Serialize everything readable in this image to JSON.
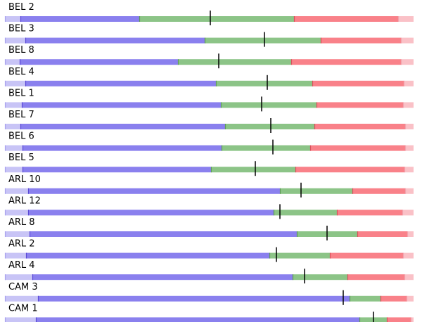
{
  "chart_data": {
    "type": "bar",
    "orientation": "horizontal-segmented",
    "grid": false,
    "legend": "none",
    "xlim": [
      0,
      590
    ],
    "colors": {
      "pre": "#c8c4f6",
      "pre_edge": "#a9a3ee",
      "low": "#8a80ee",
      "low_edge": "#5a48d6",
      "mid": "#8cc487",
      "mid_edge": "#5e9d58",
      "high": "#f98189",
      "high_edge": "#d9505c",
      "post": "#fac1c7",
      "post_edge": "#f1a3ad",
      "marker": "#000000"
    },
    "rows": [
      {
        "label": "BEL 2",
        "pre": [
          7,
          29
        ],
        "low": [
          29,
          198
        ],
        "mid": [
          198,
          418
        ],
        "high": [
          418,
          566
        ],
        "post": [
          566,
          588
        ],
        "marker": 299
      },
      {
        "label": "BEL 3",
        "pre": [
          7,
          36
        ],
        "low": [
          36,
          291
        ],
        "mid": [
          291,
          456
        ],
        "high": [
          456,
          570
        ],
        "post": [
          570,
          588
        ],
        "marker": 376
      },
      {
        "label": "BEL 8",
        "pre": [
          7,
          28
        ],
        "low": [
          28,
          253
        ],
        "mid": [
          253,
          414
        ],
        "high": [
          414,
          570
        ],
        "post": [
          570,
          588
        ],
        "marker": 311
      },
      {
        "label": "BEL 4",
        "pre": [
          7,
          36
        ],
        "low": [
          36,
          307
        ],
        "mid": [
          307,
          444
        ],
        "high": [
          444,
          574
        ],
        "post": [
          574,
          588
        ],
        "marker": 380
      },
      {
        "label": "BEL 1",
        "pre": [
          7,
          31
        ],
        "low": [
          31,
          314
        ],
        "mid": [
          314,
          450
        ],
        "high": [
          450,
          573
        ],
        "post": [
          573,
          588
        ],
        "marker": 372
      },
      {
        "label": "BEL 7",
        "pre": [
          7,
          29
        ],
        "low": [
          29,
          320
        ],
        "mid": [
          320,
          447
        ],
        "high": [
          447,
          576
        ],
        "post": [
          576,
          588
        ],
        "marker": 385
      },
      {
        "label": "BEL 6",
        "pre": [
          7,
          32
        ],
        "low": [
          32,
          315
        ],
        "mid": [
          315,
          441
        ],
        "high": [
          441,
          576
        ],
        "post": [
          576,
          588
        ],
        "marker": 388
      },
      {
        "label": "BEL 5",
        "pre": [
          7,
          32
        ],
        "low": [
          32,
          300
        ],
        "mid": [
          300,
          420
        ],
        "high": [
          420,
          575
        ],
        "post": [
          575,
          588
        ],
        "marker": 363
      },
      {
        "label": "ARL 10",
        "pre": [
          7,
          40
        ],
        "low": [
          40,
          398
        ],
        "mid": [
          398,
          501
        ],
        "high": [
          501,
          576
        ],
        "post": [
          576,
          588
        ],
        "marker": 428
      },
      {
        "label": "ARL 12",
        "pre": [
          7,
          40
        ],
        "low": [
          40,
          389
        ],
        "mid": [
          389,
          479
        ],
        "high": [
          479,
          572
        ],
        "post": [
          572,
          588
        ],
        "marker": 398
      },
      {
        "label": "ARL 8",
        "pre": [
          7,
          42
        ],
        "low": [
          42,
          422
        ],
        "mid": [
          422,
          508
        ],
        "high": [
          508,
          579
        ],
        "post": [
          579,
          588
        ],
        "marker": 465
      },
      {
        "label": "ARL 2",
        "pre": [
          7,
          37
        ],
        "low": [
          37,
          383
        ],
        "mid": [
          383,
          469
        ],
        "high": [
          469,
          573
        ],
        "post": [
          573,
          588
        ],
        "marker": 393
      },
      {
        "label": "ARL 4",
        "pre": [
          7,
          46
        ],
        "low": [
          46,
          416
        ],
        "mid": [
          416,
          494
        ],
        "high": [
          494,
          575
        ],
        "post": [
          575,
          588
        ],
        "marker": 433
      },
      {
        "label": "CAM 3",
        "pre": [
          7,
          54
        ],
        "low": [
          54,
          497
        ],
        "mid": [
          497,
          541
        ],
        "high": [
          541,
          578
        ],
        "post": [
          578,
          588
        ],
        "marker": 488
      },
      {
        "label": "CAM 1",
        "pre": [
          7,
          51
        ],
        "low": [
          51,
          511
        ],
        "mid": [
          511,
          550
        ],
        "high": [
          550,
          584
        ],
        "post": [
          584,
          588
        ],
        "marker": 531
      }
    ]
  }
}
